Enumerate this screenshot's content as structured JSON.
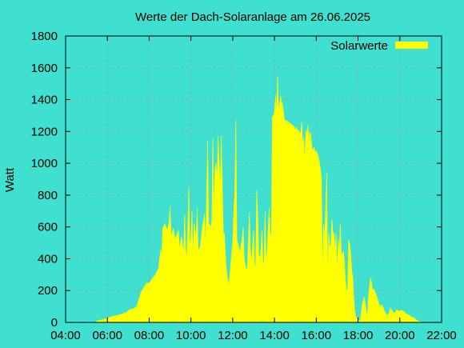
{
  "colors": {
    "background": "#40E0D0",
    "series": "#FFFF00",
    "grid": "#A0A0A0",
    "axis": "#000000"
  },
  "chart_data": {
    "type": "area",
    "title": "Werte der Dach-Solaranlage am 26.06.2025",
    "xlabel": "",
    "ylabel": "Watt",
    "x_unit": "hours since midnight",
    "xlim": [
      4,
      22
    ],
    "ylim": [
      0,
      1800
    ],
    "grid": true,
    "legend_position": "top-right",
    "x_ticks": [
      {
        "value": 4,
        "label": "04:00"
      },
      {
        "value": 6,
        "label": "06:00"
      },
      {
        "value": 8,
        "label": "08:00"
      },
      {
        "value": 10,
        "label": "10:00"
      },
      {
        "value": 12,
        "label": "12:00"
      },
      {
        "value": 14,
        "label": "14:00"
      },
      {
        "value": 16,
        "label": "16:00"
      },
      {
        "value": 18,
        "label": "18:00"
      },
      {
        "value": 20,
        "label": "20:00"
      },
      {
        "value": 22,
        "label": "22:00"
      }
    ],
    "y_ticks": [
      {
        "value": 0,
        "label": "0"
      },
      {
        "value": 200,
        "label": "200"
      },
      {
        "value": 400,
        "label": "400"
      },
      {
        "value": 600,
        "label": "600"
      },
      {
        "value": 800,
        "label": "800"
      },
      {
        "value": 1000,
        "label": "1000"
      },
      {
        "value": 1200,
        "label": "1200"
      },
      {
        "value": 1400,
        "label": "1400"
      },
      {
        "value": 1600,
        "label": "1600"
      },
      {
        "value": 1800,
        "label": "1800"
      }
    ],
    "series": [
      {
        "name": "Solarwerte",
        "color": "#FFFF00",
        "points": [
          [
            5.45,
            0
          ],
          [
            5.5,
            10
          ],
          [
            5.7,
            15
          ],
          [
            5.9,
            22
          ],
          [
            6.1,
            30
          ],
          [
            6.3,
            40
          ],
          [
            6.5,
            45
          ],
          [
            6.7,
            52
          ],
          [
            6.9,
            62
          ],
          [
            7.05,
            80
          ],
          [
            7.25,
            85
          ],
          [
            7.4,
            100
          ],
          [
            7.5,
            140
          ],
          [
            7.6,
            185
          ],
          [
            7.75,
            220
          ],
          [
            7.9,
            250
          ],
          [
            8.0,
            245
          ],
          [
            8.15,
            275
          ],
          [
            8.3,
            300
          ],
          [
            8.45,
            340
          ],
          [
            8.55,
            460
          ],
          [
            8.6,
            400
          ],
          [
            8.65,
            590
          ],
          [
            8.75,
            620
          ],
          [
            8.85,
            580
          ],
          [
            8.95,
            620
          ],
          [
            9.0,
            730
          ],
          [
            9.05,
            540
          ],
          [
            9.15,
            590
          ],
          [
            9.25,
            520
          ],
          [
            9.35,
            560
          ],
          [
            9.4,
            580
          ],
          [
            9.45,
            460
          ],
          [
            9.55,
            540
          ],
          [
            9.65,
            430
          ],
          [
            9.7,
            680
          ],
          [
            9.75,
            460
          ],
          [
            9.8,
            380
          ],
          [
            9.85,
            600
          ],
          [
            9.9,
            850
          ],
          [
            9.95,
            480
          ],
          [
            10.0,
            520
          ],
          [
            10.05,
            700
          ],
          [
            10.1,
            380
          ],
          [
            10.15,
            620
          ],
          [
            10.25,
            530
          ],
          [
            10.3,
            720
          ],
          [
            10.35,
            450
          ],
          [
            10.45,
            480
          ],
          [
            10.55,
            600
          ],
          [
            10.65,
            680
          ],
          [
            10.7,
            460
          ],
          [
            10.8,
            1140
          ],
          [
            10.85,
            620
          ],
          [
            10.95,
            600
          ],
          [
            11.0,
            640
          ],
          [
            11.05,
            1160
          ],
          [
            11.1,
            660
          ],
          [
            11.15,
            960
          ],
          [
            11.2,
            1000
          ],
          [
            11.25,
            880
          ],
          [
            11.3,
            1170
          ],
          [
            11.35,
            1000
          ],
          [
            11.4,
            840
          ],
          [
            11.45,
            1170
          ],
          [
            11.5,
            870
          ],
          [
            11.55,
            560
          ],
          [
            11.6,
            560
          ],
          [
            11.65,
            430
          ],
          [
            11.7,
            330
          ],
          [
            11.75,
            280
          ],
          [
            11.8,
            230
          ],
          [
            11.85,
            280
          ],
          [
            11.95,
            440
          ],
          [
            12.0,
            500
          ],
          [
            12.05,
            700
          ],
          [
            12.1,
            820
          ],
          [
            12.15,
            1270
          ],
          [
            12.2,
            520
          ],
          [
            12.3,
            470
          ],
          [
            12.35,
            430
          ],
          [
            12.4,
            490
          ],
          [
            12.45,
            520
          ],
          [
            12.5,
            600
          ],
          [
            12.55,
            400
          ],
          [
            12.65,
            330
          ],
          [
            12.7,
            340
          ],
          [
            12.75,
            520
          ],
          [
            12.8,
            690
          ],
          [
            12.85,
            440
          ],
          [
            12.9,
            380
          ],
          [
            13.0,
            580
          ],
          [
            13.05,
            330
          ],
          [
            13.1,
            370
          ],
          [
            13.15,
            830
          ],
          [
            13.2,
            680
          ],
          [
            13.25,
            420
          ],
          [
            13.3,
            400
          ],
          [
            13.35,
            460
          ],
          [
            13.4,
            580
          ],
          [
            13.45,
            360
          ],
          [
            13.5,
            380
          ],
          [
            13.55,
            700
          ],
          [
            13.6,
            380
          ],
          [
            13.65,
            440
          ],
          [
            13.7,
            600
          ],
          [
            13.75,
            720
          ],
          [
            13.8,
            530
          ],
          [
            13.85,
            560
          ],
          [
            13.9,
            1290
          ],
          [
            13.95,
            1300
          ],
          [
            14.0,
            1320
          ],
          [
            14.05,
            1430
          ],
          [
            14.1,
            1300
          ],
          [
            14.15,
            1545
          ],
          [
            14.2,
            1320
          ],
          [
            14.25,
            1380
          ],
          [
            14.3,
            1420
          ],
          [
            14.35,
            1380
          ],
          [
            14.4,
            1360
          ],
          [
            14.45,
            1300
          ],
          [
            14.5,
            1260
          ],
          [
            14.55,
            1270
          ],
          [
            14.65,
            1260
          ],
          [
            14.75,
            1250
          ],
          [
            14.85,
            1240
          ],
          [
            14.95,
            1230
          ],
          [
            15.0,
            1200
          ],
          [
            15.05,
            1230
          ],
          [
            15.1,
            1200
          ],
          [
            15.15,
            1210
          ],
          [
            15.25,
            1180
          ],
          [
            15.3,
            1260
          ],
          [
            15.35,
            1120
          ],
          [
            15.4,
            1160
          ],
          [
            15.45,
            1000
          ],
          [
            15.5,
            1210
          ],
          [
            15.55,
            1180
          ],
          [
            15.6,
            1240
          ],
          [
            15.65,
            1140
          ],
          [
            15.7,
            1200
          ],
          [
            15.75,
            1160
          ],
          [
            15.8,
            1080
          ],
          [
            15.85,
            1090
          ],
          [
            15.9,
            1100
          ],
          [
            15.95,
            1060
          ],
          [
            16.0,
            1080
          ],
          [
            16.05,
            1060
          ],
          [
            16.1,
            1040
          ],
          [
            16.15,
            1010
          ],
          [
            16.2,
            960
          ],
          [
            16.25,
            900
          ],
          [
            16.3,
            260
          ],
          [
            16.35,
            620
          ],
          [
            16.4,
            520
          ],
          [
            16.5,
            940
          ],
          [
            16.55,
            260
          ],
          [
            16.6,
            560
          ],
          [
            16.65,
            460
          ],
          [
            16.7,
            490
          ],
          [
            16.75,
            650
          ],
          [
            16.8,
            560
          ],
          [
            16.85,
            560
          ],
          [
            16.9,
            440
          ],
          [
            16.95,
            560
          ],
          [
            17.0,
            300
          ],
          [
            17.05,
            520
          ],
          [
            17.1,
            440
          ],
          [
            17.15,
            620
          ],
          [
            17.2,
            440
          ],
          [
            17.25,
            420
          ],
          [
            17.3,
            450
          ],
          [
            17.35,
            380
          ],
          [
            17.4,
            260
          ],
          [
            17.45,
            200
          ],
          [
            17.5,
            200
          ],
          [
            17.55,
            520
          ],
          [
            17.6,
            500
          ],
          [
            17.65,
            430
          ],
          [
            17.7,
            320
          ],
          [
            17.75,
            280
          ],
          [
            17.8,
            140
          ],
          [
            17.85,
            60
          ],
          [
            17.9,
            30
          ],
          [
            17.95,
            25
          ],
          [
            18.05,
            10
          ],
          [
            18.1,
            5
          ],
          [
            18.2,
            110
          ],
          [
            18.25,
            140
          ],
          [
            18.3,
            160
          ],
          [
            18.35,
            110
          ],
          [
            18.4,
            60
          ],
          [
            18.45,
            50
          ],
          [
            18.5,
            160
          ],
          [
            18.55,
            230
          ],
          [
            18.6,
            280
          ],
          [
            18.65,
            250
          ],
          [
            18.7,
            190
          ],
          [
            18.75,
            210
          ],
          [
            18.85,
            180
          ],
          [
            18.95,
            140
          ],
          [
            19.05,
            100
          ],
          [
            19.15,
            110
          ],
          [
            19.25,
            75
          ],
          [
            19.35,
            50
          ],
          [
            19.45,
            45
          ],
          [
            19.55,
            90
          ],
          [
            19.65,
            70
          ],
          [
            19.75,
            55
          ],
          [
            19.85,
            80
          ],
          [
            19.95,
            70
          ],
          [
            20.05,
            75
          ],
          [
            20.15,
            75
          ],
          [
            20.25,
            60
          ],
          [
            20.35,
            50
          ],
          [
            20.45,
            45
          ],
          [
            20.55,
            35
          ],
          [
            20.65,
            30
          ],
          [
            20.75,
            20
          ],
          [
            20.85,
            10
          ],
          [
            20.95,
            5
          ],
          [
            21.1,
            0
          ]
        ]
      }
    ]
  }
}
